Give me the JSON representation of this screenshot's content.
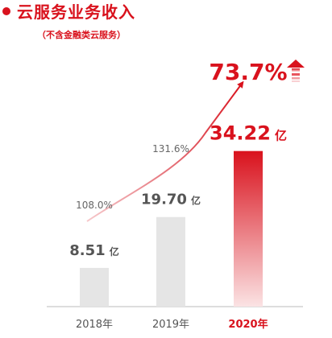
{
  "title": "云服务业务收入",
  "subtitle": "（不含金融类云服务）",
  "chart_data": {
    "type": "bar",
    "categories": [
      "2018年",
      "2019年",
      "2020年"
    ],
    "values": [
      8.51,
      19.7,
      34.22
    ],
    "value_labels": [
      "8.51",
      "19.70",
      "34.22"
    ],
    "unit": "亿",
    "highlight_index": 2,
    "growth_rates": [
      "108.0%",
      "131.6%",
      "73.7%"
    ],
    "grid": false,
    "legend": "none",
    "colors": {
      "bar": "#e5e5e5",
      "highlight_top": "#d9121d",
      "highlight_bottom": "#fbe3e4",
      "accent": "#d9121d",
      "text": "#555555"
    }
  }
}
